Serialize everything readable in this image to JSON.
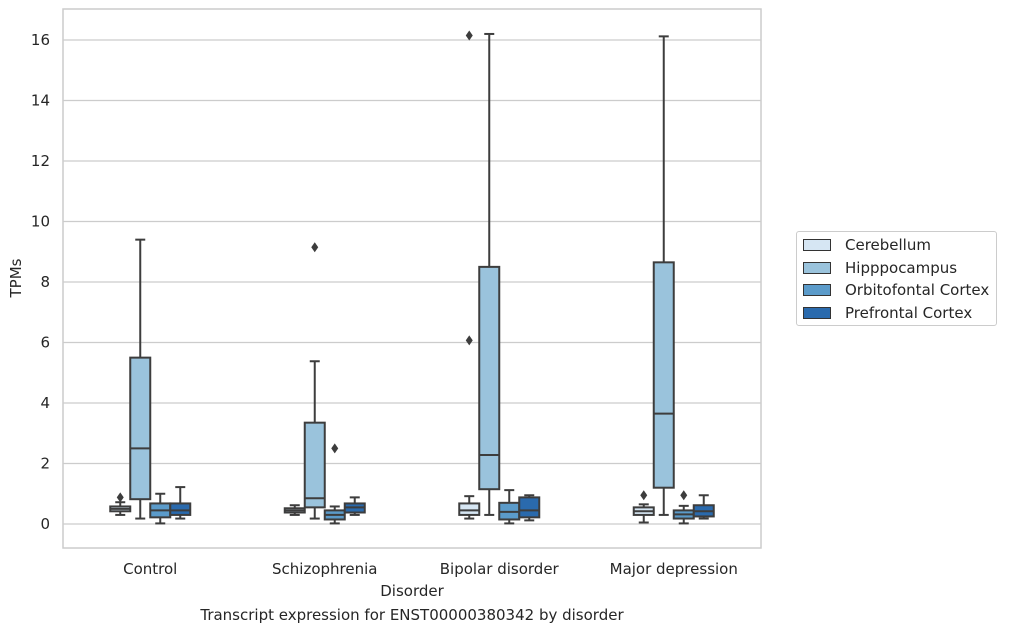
{
  "chart_data": {
    "type": "box",
    "title": "",
    "caption": "Transcript expression for ENST00000380342 by disorder",
    "xlabel": "Disorder",
    "ylabel": "TPMs",
    "ylim": [
      -0.8,
      17.0
    ],
    "yticks": [
      0,
      2,
      4,
      6,
      8,
      10,
      12,
      14,
      16
    ],
    "grid": true,
    "legend_placement": "outside-right",
    "categories": [
      "Control",
      "Schizophrenia",
      "Bipolar disorder",
      "Major depression"
    ],
    "series": [
      {
        "name": "Cerebellum",
        "color": "#d6e6f3",
        "boxes": [
          {
            "whisker_low": 0.3,
            "q1": 0.42,
            "median": 0.5,
            "q3": 0.58,
            "whisker_high": 0.72,
            "outliers": [
              0.88
            ]
          },
          {
            "whisker_low": 0.3,
            "q1": 0.38,
            "median": 0.45,
            "q3": 0.52,
            "whisker_high": 0.62,
            "outliers": []
          },
          {
            "whisker_low": 0.18,
            "q1": 0.3,
            "median": 0.45,
            "q3": 0.68,
            "whisker_high": 0.92,
            "outliers": [
              6.07,
              16.15
            ]
          },
          {
            "whisker_low": 0.05,
            "q1": 0.3,
            "median": 0.42,
            "q3": 0.55,
            "whisker_high": 0.65,
            "outliers": [
              0.95
            ]
          }
        ]
      },
      {
        "name": "Hipppocampus",
        "color": "#9ac3dc",
        "boxes": [
          {
            "whisker_low": 0.18,
            "q1": 0.82,
            "median": 2.5,
            "q3": 5.5,
            "whisker_high": 9.4,
            "outliers": []
          },
          {
            "whisker_low": 0.18,
            "q1": 0.55,
            "median": 0.85,
            "q3": 3.35,
            "whisker_high": 5.38,
            "outliers": [
              9.15
            ]
          },
          {
            "whisker_low": 0.3,
            "q1": 1.15,
            "median": 2.28,
            "q3": 8.5,
            "whisker_high": 16.2,
            "outliers": []
          },
          {
            "whisker_low": 0.3,
            "q1": 1.2,
            "median": 3.65,
            "q3": 8.65,
            "whisker_high": 16.12,
            "outliers": []
          }
        ]
      },
      {
        "name": "Orbitofontal Cortex",
        "color": "#5b9bca",
        "boxes": [
          {
            "whisker_low": 0.02,
            "q1": 0.22,
            "median": 0.45,
            "q3": 0.68,
            "whisker_high": 1.0,
            "outliers": []
          },
          {
            "whisker_low": 0.02,
            "q1": 0.15,
            "median": 0.3,
            "q3": 0.45,
            "whisker_high": 0.58,
            "outliers": [
              2.5
            ]
          },
          {
            "whisker_low": 0.02,
            "q1": 0.15,
            "median": 0.4,
            "q3": 0.7,
            "whisker_high": 1.12,
            "outliers": []
          },
          {
            "whisker_low": 0.02,
            "q1": 0.18,
            "median": 0.32,
            "q3": 0.45,
            "whisker_high": 0.6,
            "outliers": [
              0.95
            ]
          }
        ]
      },
      {
        "name": "Prefrontal Cortex",
        "color": "#2a6aad",
        "boxes": [
          {
            "whisker_low": 0.18,
            "q1": 0.3,
            "median": 0.45,
            "q3": 0.68,
            "whisker_high": 1.22,
            "outliers": []
          },
          {
            "whisker_low": 0.3,
            "q1": 0.38,
            "median": 0.55,
            "q3": 0.68,
            "whisker_high": 0.88,
            "outliers": []
          },
          {
            "whisker_low": 0.12,
            "q1": 0.22,
            "median": 0.45,
            "q3": 0.88,
            "whisker_high": 0.95,
            "outliers": []
          },
          {
            "whisker_low": 0.18,
            "q1": 0.25,
            "median": 0.42,
            "q3": 0.62,
            "whisker_high": 0.95,
            "outliers": []
          }
        ]
      }
    ]
  }
}
